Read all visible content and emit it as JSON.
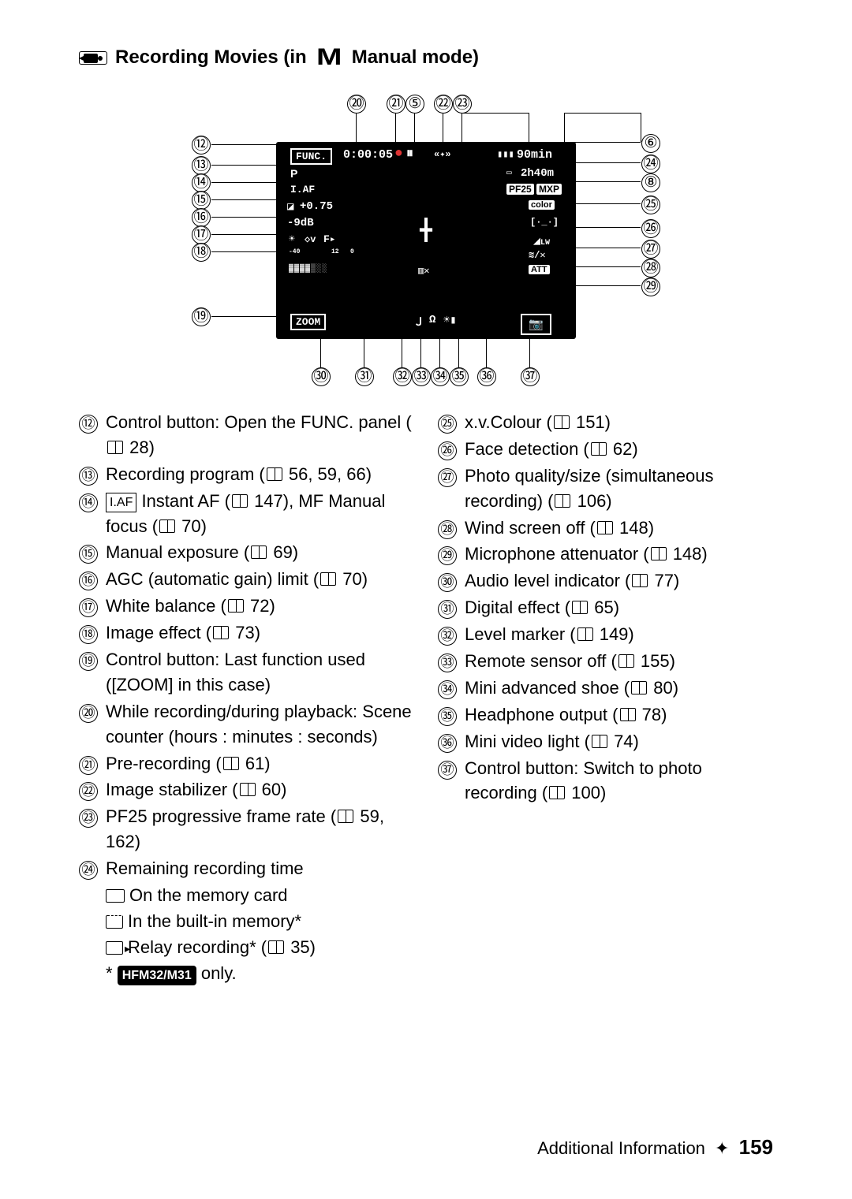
{
  "title": {
    "pre": "Recording Movies (in",
    "M": "M",
    "post": "Manual mode)"
  },
  "screen": {
    "func": "FUNC.",
    "counter": "0:00:05",
    "batt": "90min",
    "prog": "P",
    "remtime": "2h40m",
    "iaf": "I.AF",
    "pf25": "PF25",
    "mxp": "MXP",
    "ev": "+0.75",
    "color": "color",
    "gain": "-9dB",
    "att": "ATT",
    "zoom": "ZOOM",
    "audio_lo": "-40",
    "audio_hi": "12",
    "audio_zero": "0"
  },
  "callouts": {
    "left": [
      "⑫",
      "⑬",
      "⑭",
      "⑮",
      "⑯",
      "⑰",
      "⑱",
      "⑲"
    ],
    "right": [
      "⑥",
      "㉔",
      "⑧",
      "㉕",
      "㉖",
      "㉗",
      "㉘",
      "㉙"
    ],
    "top": [
      "⑳",
      "㉑",
      "⑤",
      "㉒",
      "㉓"
    ],
    "bottom": [
      "㉚",
      "㉛",
      "㉜",
      "㉝",
      "㉞",
      "㉟",
      "㊱",
      "㊲"
    ]
  },
  "legend_left": [
    {
      "n": "⑫",
      "t": "Control button: Open the FUNC. panel (",
      "ref": "28",
      "tail": ")"
    },
    {
      "n": "⑬",
      "t": "Recording program (",
      "ref": "56, 59, 66",
      "tail": ")"
    },
    {
      "n": "⑭",
      "iaf": true,
      "t": "Instant AF (",
      "ref": "147",
      "tail": "), MF Manual focus (",
      "ref2": "70",
      "tail2": ")"
    },
    {
      "n": "⑮",
      "t": "Manual exposure (",
      "ref": "69",
      "tail": ")"
    },
    {
      "n": "⑯",
      "t": "AGC (automatic gain) limit (",
      "ref": "70",
      "tail": ")"
    },
    {
      "n": "⑰",
      "t": "White balance (",
      "ref": "72",
      "tail": ")"
    },
    {
      "n": "⑱",
      "t": "Image effect (",
      "ref": "73",
      "tail": ")"
    },
    {
      "n": "⑲",
      "plain": "Control button: Last function used ([ZOOM] in this case)"
    },
    {
      "n": "⑳",
      "plain": "While recording/during playback: Scene counter (hours : minutes : seconds)"
    },
    {
      "n": "㉑",
      "t": "Pre-recording (",
      "ref": "61",
      "tail": ")"
    },
    {
      "n": "㉒",
      "t": "Image stabilizer (",
      "ref": "60",
      "tail": ")"
    },
    {
      "n": "㉓",
      "t": "PF25 progressive frame rate (",
      "ref": "59, 162",
      "tail": ")"
    },
    {
      "n": "㉔",
      "plain": "Remaining recording time",
      "sub": true
    }
  ],
  "sub24": {
    "a": "On the memory card",
    "b": "In the built-in memory*",
    "c_pre": "Relay recording* (",
    "c_ref": "35",
    "c_post": ")",
    "note_pre": "*",
    "note_badge": "HFM32/M31",
    "note_post": "only."
  },
  "legend_right": [
    {
      "n": "㉕",
      "t": "x.v.Colour (",
      "ref": "151",
      "tail": ")"
    },
    {
      "n": "㉖",
      "t": "Face detection (",
      "ref": "62",
      "tail": ")"
    },
    {
      "n": "㉗",
      "t": "Photo quality/size (simultaneous recording) (",
      "ref": "106",
      "tail": ")"
    },
    {
      "n": "㉘",
      "t": "Wind screen off (",
      "ref": "148",
      "tail": ")"
    },
    {
      "n": "㉙",
      "t": "Microphone attenuator (",
      "ref": "148",
      "tail": ")"
    },
    {
      "n": "㉚",
      "t": "Audio level indicator (",
      "ref": "77",
      "tail": ")"
    },
    {
      "n": "㉛",
      "t": "Digital effect (",
      "ref": "65",
      "tail": ")"
    },
    {
      "n": "㉜",
      "t": "Level marker (",
      "ref": "149",
      "tail": ")"
    },
    {
      "n": "㉝",
      "t": "Remote sensor off (",
      "ref": "155",
      "tail": ")"
    },
    {
      "n": "㉞",
      "t": "Mini advanced shoe (",
      "ref": "80",
      "tail": ")"
    },
    {
      "n": "㉟",
      "t": "Headphone output (",
      "ref": "78",
      "tail": ")"
    },
    {
      "n": "㊱",
      "t": "Mini video light (",
      "ref": "74",
      "tail": ")"
    },
    {
      "n": "㊲",
      "t": "Control button: Switch to photo recording (",
      "ref": "100",
      "tail": ")"
    }
  ],
  "footer": {
    "section": "Additional Information",
    "page": "159"
  }
}
